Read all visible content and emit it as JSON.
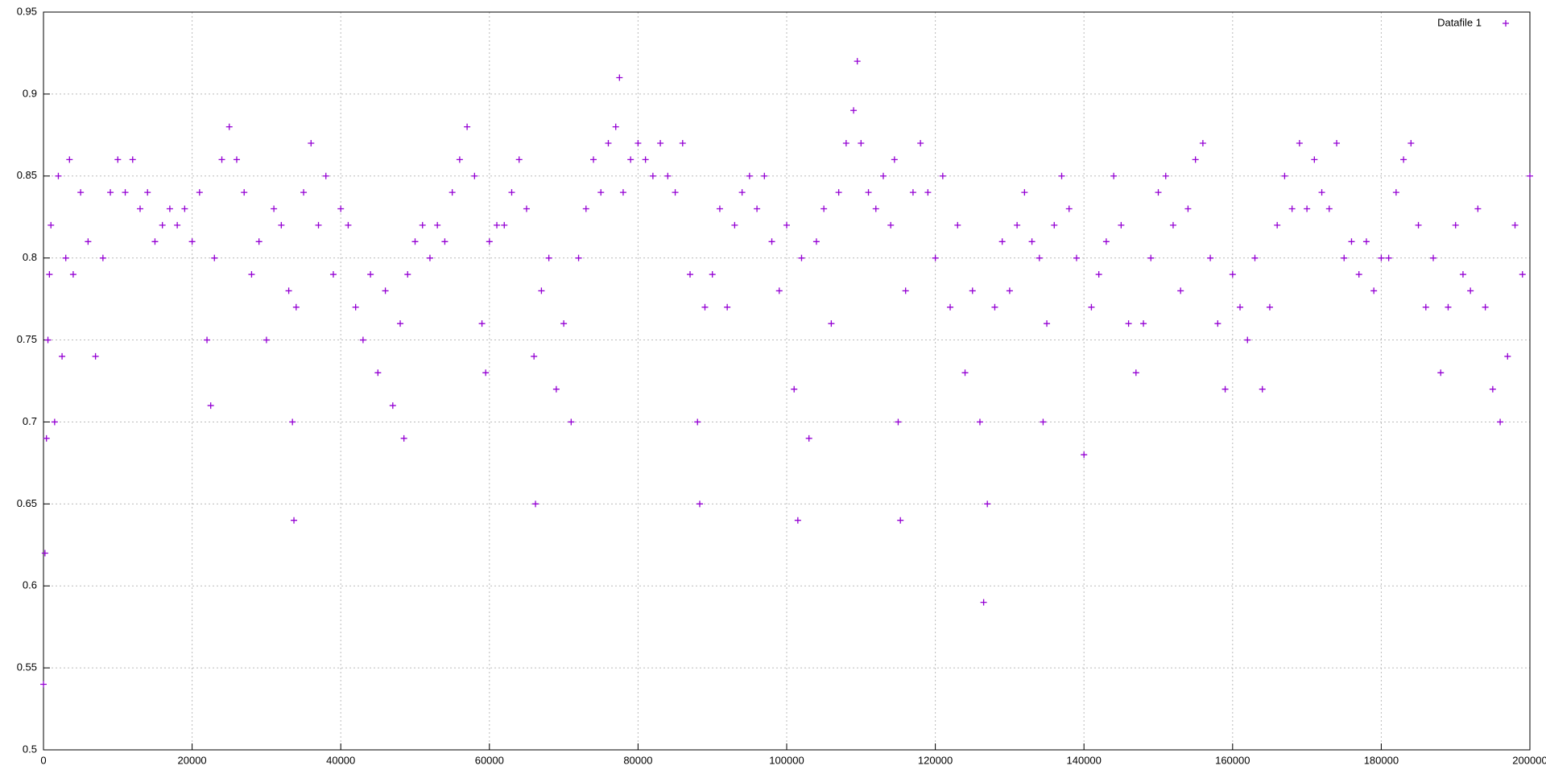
{
  "chart_data": {
    "type": "scatter",
    "color": "#9400d3",
    "grid": true,
    "legend": "top-right",
    "xlim": [
      0,
      200000
    ],
    "xticks": [
      0,
      20000,
      40000,
      60000,
      80000,
      100000,
      120000,
      140000,
      160000,
      180000,
      200000
    ],
    "ylim": [
      0.5,
      0.95
    ],
    "yticks": [
      0.5,
      0.55,
      0.6,
      0.65,
      0.7,
      0.75,
      0.8,
      0.85,
      0.9,
      0.95
    ],
    "series": [
      {
        "name": "Datafile 1",
        "color": "#9400d3",
        "x": [
          0,
          200,
          400,
          600,
          800,
          1000,
          1500,
          2000,
          2500,
          3000,
          3500,
          4000,
          5000,
          6000,
          7000,
          8000,
          9000,
          10000,
          11000,
          12000,
          13000,
          14000,
          15000,
          16000,
          17000,
          18000,
          19000,
          20000,
          21000,
          22000,
          22500,
          23000,
          24000,
          25000,
          26000,
          27000,
          28000,
          29000,
          30000,
          31000,
          32000,
          33000,
          33500,
          33700,
          34000,
          35000,
          36000,
          37000,
          38000,
          39000,
          40000,
          41000,
          42000,
          43000,
          44000,
          45000,
          46000,
          47000,
          48000,
          48500,
          49000,
          50000,
          51000,
          52000,
          53000,
          54000,
          55000,
          56000,
          57000,
          58000,
          59000,
          59500,
          60000,
          61000,
          62000,
          63000,
          64000,
          65000,
          66000,
          66200,
          67000,
          68000,
          69000,
          70000,
          71000,
          72000,
          73000,
          74000,
          75000,
          76000,
          77000,
          77500,
          78000,
          79000,
          80000,
          81000,
          82000,
          83000,
          84000,
          85000,
          86000,
          87000,
          88000,
          88300,
          89000,
          90000,
          91000,
          92000,
          93000,
          94000,
          95000,
          96000,
          97000,
          98000,
          99000,
          100000,
          101000,
          101500,
          102000,
          103000,
          104000,
          105000,
          106000,
          107000,
          108000,
          109000,
          109500,
          110000,
          111000,
          112000,
          113000,
          114000,
          114500,
          115000,
          115300,
          116000,
          117000,
          118000,
          119000,
          120000,
          121000,
          122000,
          123000,
          124000,
          125000,
          126000,
          126500,
          127000,
          128000,
          129000,
          130000,
          131000,
          132000,
          133000,
          134000,
          134500,
          135000,
          136000,
          137000,
          138000,
          139000,
          140000,
          141000,
          142000,
          143000,
          144000,
          145000,
          146000,
          147000,
          148000,
          149000,
          150000,
          151000,
          152000,
          153000,
          154000,
          155000,
          156000,
          157000,
          158000,
          159000,
          160000,
          161000,
          162000,
          163000,
          164000,
          165000,
          166000,
          167000,
          168000,
          169000,
          170000,
          171000,
          172000,
          173000,
          174000,
          175000,
          176000,
          177000,
          178000,
          179000,
          180000,
          181000,
          182000,
          183000,
          184000,
          185000,
          186000,
          187000,
          188000,
          189000,
          190000,
          191000,
          192000,
          193000,
          194000,
          195000,
          196000,
          197000,
          198000,
          199000,
          200000
        ],
        "values": [
          0.54,
          0.62,
          0.69,
          0.75,
          0.79,
          0.82,
          0.7,
          0.85,
          0.74,
          0.8,
          0.86,
          0.79,
          0.84,
          0.81,
          0.74,
          0.8,
          0.84,
          0.86,
          0.84,
          0.86,
          0.83,
          0.84,
          0.81,
          0.82,
          0.83,
          0.82,
          0.83,
          0.81,
          0.84,
          0.75,
          0.71,
          0.8,
          0.86,
          0.88,
          0.86,
          0.84,
          0.79,
          0.81,
          0.75,
          0.83,
          0.82,
          0.78,
          0.7,
          0.64,
          0.77,
          0.84,
          0.87,
          0.82,
          0.85,
          0.79,
          0.83,
          0.82,
          0.77,
          0.75,
          0.79,
          0.73,
          0.78,
          0.71,
          0.76,
          0.69,
          0.79,
          0.81,
          0.82,
          0.8,
          0.82,
          0.81,
          0.84,
          0.86,
          0.88,
          0.85,
          0.76,
          0.73,
          0.81,
          0.82,
          0.82,
          0.84,
          0.86,
          0.83,
          0.74,
          0.65,
          0.78,
          0.8,
          0.72,
          0.76,
          0.7,
          0.8,
          0.83,
          0.86,
          0.84,
          0.87,
          0.88,
          0.91,
          0.84,
          0.86,
          0.87,
          0.86,
          0.85,
          0.87,
          0.85,
          0.84,
          0.87,
          0.79,
          0.7,
          0.65,
          0.77,
          0.79,
          0.83,
          0.77,
          0.82,
          0.84,
          0.85,
          0.83,
          0.85,
          0.81,
          0.78,
          0.82,
          0.72,
          0.64,
          0.8,
          0.69,
          0.81,
          0.83,
          0.76,
          0.84,
          0.87,
          0.89,
          0.92,
          0.87,
          0.84,
          0.83,
          0.85,
          0.82,
          0.86,
          0.7,
          0.64,
          0.78,
          0.84,
          0.87,
          0.84,
          0.8,
          0.85,
          0.77,
          0.82,
          0.73,
          0.78,
          0.7,
          0.59,
          0.65,
          0.77,
          0.81,
          0.78,
          0.82,
          0.84,
          0.81,
          0.8,
          0.7,
          0.76,
          0.82,
          0.85,
          0.83,
          0.8,
          0.68,
          0.77,
          0.79,
          0.81,
          0.85,
          0.82,
          0.76,
          0.73,
          0.76,
          0.8,
          0.84,
          0.85,
          0.82,
          0.78,
          0.83,
          0.86,
          0.87,
          0.8,
          0.76,
          0.72,
          0.79,
          0.77,
          0.75,
          0.8,
          0.72,
          0.77,
          0.82,
          0.85,
          0.83,
          0.87,
          0.83,
          0.86,
          0.84,
          0.83,
          0.87,
          0.8,
          0.81,
          0.79,
          0.81,
          0.78,
          0.8,
          0.8,
          0.84,
          0.86,
          0.87,
          0.82,
          0.77,
          0.8,
          0.73,
          0.77,
          0.82,
          0.79,
          0.78,
          0.83,
          0.77,
          0.72,
          0.7,
          0.74,
          0.82,
          0.79,
          0.85
        ]
      }
    ]
  }
}
